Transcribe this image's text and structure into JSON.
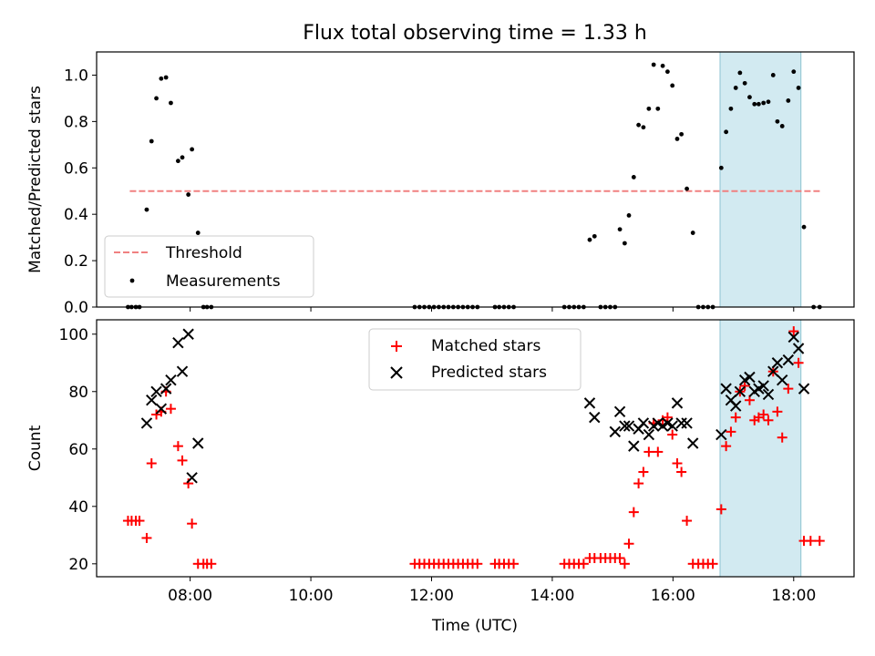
{
  "title": "Flux total observing time = 1.33 h",
  "chart_data": [
    {
      "type": "scatter",
      "panel": "top",
      "ylabel": "Matched/Predicted stars",
      "xlabel": "",
      "xlim": [
        6.45,
        19.0
      ],
      "ylim": [
        0,
        1.1
      ],
      "yticks": [
        0.0,
        0.2,
        0.4,
        0.6,
        0.8,
        1.0
      ],
      "ytick_labels": [
        "0.0",
        "0.2",
        "0.4",
        "0.6",
        "0.8",
        "1.0"
      ],
      "grid": false,
      "legend_position": "lower-left",
      "highlight_span": [
        16.78,
        18.12
      ],
      "threshold": {
        "name": "Threshold",
        "value": 0.5,
        "x_range": [
          7.0,
          18.45
        ],
        "color": "#f08080"
      },
      "series": [
        {
          "name": "Measurements",
          "color": "#000000",
          "marker": "dot",
          "points": [
            [
              6.97,
              0
            ],
            [
              7.03,
              0
            ],
            [
              7.1,
              0
            ],
            [
              7.16,
              0
            ],
            [
              7.28,
              0.42
            ],
            [
              7.36,
              0.715
            ],
            [
              7.44,
              0.9
            ],
            [
              7.52,
              0.985
            ],
            [
              7.6,
              0.99
            ],
            [
              7.68,
              0.88
            ],
            [
              7.8,
              0.63
            ],
            [
              7.87,
              0.645
            ],
            [
              7.97,
              0.485
            ],
            [
              8.03,
              0.68
            ],
            [
              8.13,
              0.32
            ],
            [
              8.22,
              0
            ],
            [
              8.28,
              0
            ],
            [
              8.35,
              0
            ],
            [
              11.72,
              0
            ],
            [
              11.8,
              0
            ],
            [
              11.88,
              0
            ],
            [
              11.96,
              0
            ],
            [
              12.04,
              0
            ],
            [
              12.12,
              0
            ],
            [
              12.2,
              0
            ],
            [
              12.28,
              0
            ],
            [
              12.36,
              0
            ],
            [
              12.44,
              0
            ],
            [
              12.52,
              0
            ],
            [
              12.6,
              0
            ],
            [
              12.68,
              0
            ],
            [
              12.76,
              0
            ],
            [
              13.05,
              0
            ],
            [
              13.12,
              0
            ],
            [
              13.2,
              0
            ],
            [
              13.28,
              0
            ],
            [
              13.36,
              0
            ],
            [
              14.2,
              0
            ],
            [
              14.28,
              0
            ],
            [
              14.36,
              0
            ],
            [
              14.44,
              0
            ],
            [
              14.52,
              0
            ],
            [
              14.62,
              0.29
            ],
            [
              14.7,
              0.305
            ],
            [
              14.8,
              0
            ],
            [
              14.88,
              0
            ],
            [
              14.96,
              0
            ],
            [
              15.04,
              0
            ],
            [
              15.12,
              0.335
            ],
            [
              15.2,
              0.275
            ],
            [
              15.27,
              0.395
            ],
            [
              15.35,
              0.56
            ],
            [
              15.43,
              0.785
            ],
            [
              15.51,
              0.775
            ],
            [
              15.6,
              0.855
            ],
            [
              15.68,
              1.045
            ],
            [
              15.75,
              0.855
            ],
            [
              15.83,
              1.04
            ],
            [
              15.91,
              1.015
            ],
            [
              15.99,
              0.955
            ],
            [
              16.07,
              0.725
            ],
            [
              16.14,
              0.745
            ],
            [
              16.23,
              0.51
            ],
            [
              16.33,
              0.32
            ],
            [
              16.42,
              0
            ],
            [
              16.5,
              0
            ],
            [
              16.58,
              0
            ],
            [
              16.66,
              0
            ],
            [
              16.8,
              0.6
            ],
            [
              16.88,
              0.755
            ],
            [
              16.96,
              0.855
            ],
            [
              17.04,
              0.945
            ],
            [
              17.11,
              1.01
            ],
            [
              17.19,
              0.965
            ],
            [
              17.27,
              0.905
            ],
            [
              17.35,
              0.875
            ],
            [
              17.42,
              0.875
            ],
            [
              17.5,
              0.88
            ],
            [
              17.58,
              0.885
            ],
            [
              17.66,
              1.0
            ],
            [
              17.73,
              0.8
            ],
            [
              17.81,
              0.78
            ],
            [
              17.91,
              0.89
            ],
            [
              18.0,
              1.015
            ],
            [
              18.08,
              0.945
            ],
            [
              18.17,
              0.345
            ],
            [
              18.33,
              0
            ],
            [
              18.43,
              0
            ]
          ]
        }
      ]
    },
    {
      "type": "scatter",
      "panel": "bottom",
      "ylabel": "Count",
      "xlabel": "Time (UTC)",
      "xlim": [
        6.45,
        19.0
      ],
      "ylim": [
        15.5,
        105
      ],
      "yticks": [
        20,
        40,
        60,
        80,
        100
      ],
      "ytick_labels": [
        "20",
        "40",
        "60",
        "80",
        "100"
      ],
      "xticks": [
        8,
        10,
        12,
        14,
        16,
        18
      ],
      "xtick_labels": [
        "08:00",
        "10:00",
        "12:00",
        "14:00",
        "16:00",
        "18:00"
      ],
      "grid": false,
      "legend_position": "top-center",
      "highlight_span": [
        16.78,
        18.12
      ],
      "series": [
        {
          "name": "Matched stars",
          "color": "#ff0000",
          "marker": "plus",
          "points": [
            [
              6.97,
              35
            ],
            [
              7.03,
              35
            ],
            [
              7.1,
              35
            ],
            [
              7.16,
              35
            ],
            [
              7.28,
              29
            ],
            [
              7.36,
              55
            ],
            [
              7.44,
              72
            ],
            [
              7.52,
              73
            ],
            [
              7.6,
              80
            ],
            [
              7.68,
              74
            ],
            [
              7.8,
              61
            ],
            [
              7.87,
              56
            ],
            [
              7.97,
              48
            ],
            [
              8.03,
              34
            ],
            [
              8.13,
              20
            ],
            [
              8.22,
              20
            ],
            [
              8.28,
              20
            ],
            [
              8.35,
              20
            ],
            [
              11.72,
              20
            ],
            [
              11.8,
              20
            ],
            [
              11.88,
              20
            ],
            [
              11.96,
              20
            ],
            [
              12.04,
              20
            ],
            [
              12.12,
              20
            ],
            [
              12.2,
              20
            ],
            [
              12.28,
              20
            ],
            [
              12.36,
              20
            ],
            [
              12.44,
              20
            ],
            [
              12.52,
              20
            ],
            [
              12.6,
              20
            ],
            [
              12.68,
              20
            ],
            [
              12.76,
              20
            ],
            [
              13.05,
              20
            ],
            [
              13.12,
              20
            ],
            [
              13.2,
              20
            ],
            [
              13.28,
              20
            ],
            [
              13.36,
              20
            ],
            [
              14.2,
              20
            ],
            [
              14.28,
              20
            ],
            [
              14.36,
              20
            ],
            [
              14.44,
              20
            ],
            [
              14.52,
              20
            ],
            [
              14.62,
              22
            ],
            [
              14.7,
              22
            ],
            [
              14.8,
              22
            ],
            [
              14.88,
              22
            ],
            [
              14.96,
              22
            ],
            [
              15.04,
              22
            ],
            [
              15.12,
              22
            ],
            [
              15.2,
              20
            ],
            [
              15.27,
              27
            ],
            [
              15.35,
              38
            ],
            [
              15.43,
              48
            ],
            [
              15.51,
              52
            ],
            [
              15.6,
              59
            ],
            [
              15.68,
              69
            ],
            [
              15.75,
              59
            ],
            [
              15.83,
              70
            ],
            [
              15.91,
              71
            ],
            [
              15.99,
              65
            ],
            [
              16.07,
              55
            ],
            [
              16.14,
              52
            ],
            [
              16.23,
              35
            ],
            [
              16.33,
              20
            ],
            [
              16.42,
              20
            ],
            [
              16.5,
              20
            ],
            [
              16.58,
              20
            ],
            [
              16.66,
              20
            ],
            [
              16.8,
              39
            ],
            [
              16.88,
              61
            ],
            [
              16.96,
              66
            ],
            [
              17.04,
              71
            ],
            [
              17.11,
              80
            ],
            [
              17.19,
              82
            ],
            [
              17.27,
              77
            ],
            [
              17.35,
              70
            ],
            [
              17.42,
              71
            ],
            [
              17.5,
              72
            ],
            [
              17.58,
              70
            ],
            [
              17.66,
              87
            ],
            [
              17.73,
              73
            ],
            [
              17.81,
              64
            ],
            [
              17.91,
              81
            ],
            [
              18.0,
              101
            ],
            [
              18.08,
              90
            ],
            [
              18.17,
              28
            ],
            [
              18.28,
              28
            ],
            [
              18.43,
              28
            ]
          ]
        },
        {
          "name": "Predicted stars",
          "color": "#000000",
          "marker": "cross",
          "points": [
            [
              7.28,
              69
            ],
            [
              7.36,
              77
            ],
            [
              7.44,
              80
            ],
            [
              7.52,
              74
            ],
            [
              7.6,
              81
            ],
            [
              7.68,
              84
            ],
            [
              7.8,
              97
            ],
            [
              7.87,
              87
            ],
            [
              7.97,
              100
            ],
            [
              8.03,
              50
            ],
            [
              8.13,
              62
            ],
            [
              14.62,
              76
            ],
            [
              14.7,
              71
            ],
            [
              15.04,
              66
            ],
            [
              15.12,
              73
            ],
            [
              15.2,
              68
            ],
            [
              15.27,
              68
            ],
            [
              15.35,
              61
            ],
            [
              15.43,
              67
            ],
            [
              15.51,
              69
            ],
            [
              15.6,
              65
            ],
            [
              15.68,
              68
            ],
            [
              15.75,
              69
            ],
            [
              15.83,
              68
            ],
            [
              15.91,
              69
            ],
            [
              15.99,
              68
            ],
            [
              16.07,
              76
            ],
            [
              16.14,
              69
            ],
            [
              16.23,
              69
            ],
            [
              16.33,
              62
            ],
            [
              16.8,
              65
            ],
            [
              16.88,
              81
            ],
            [
              16.96,
              77
            ],
            [
              17.04,
              75
            ],
            [
              17.11,
              80
            ],
            [
              17.19,
              84
            ],
            [
              17.27,
              85
            ],
            [
              17.35,
              80
            ],
            [
              17.42,
              81
            ],
            [
              17.5,
              82
            ],
            [
              17.58,
              79
            ],
            [
              17.66,
              87
            ],
            [
              17.73,
              90
            ],
            [
              17.81,
              84
            ],
            [
              17.91,
              91
            ],
            [
              18.0,
              99
            ],
            [
              18.08,
              95
            ],
            [
              18.17,
              81
            ]
          ]
        }
      ]
    }
  ]
}
